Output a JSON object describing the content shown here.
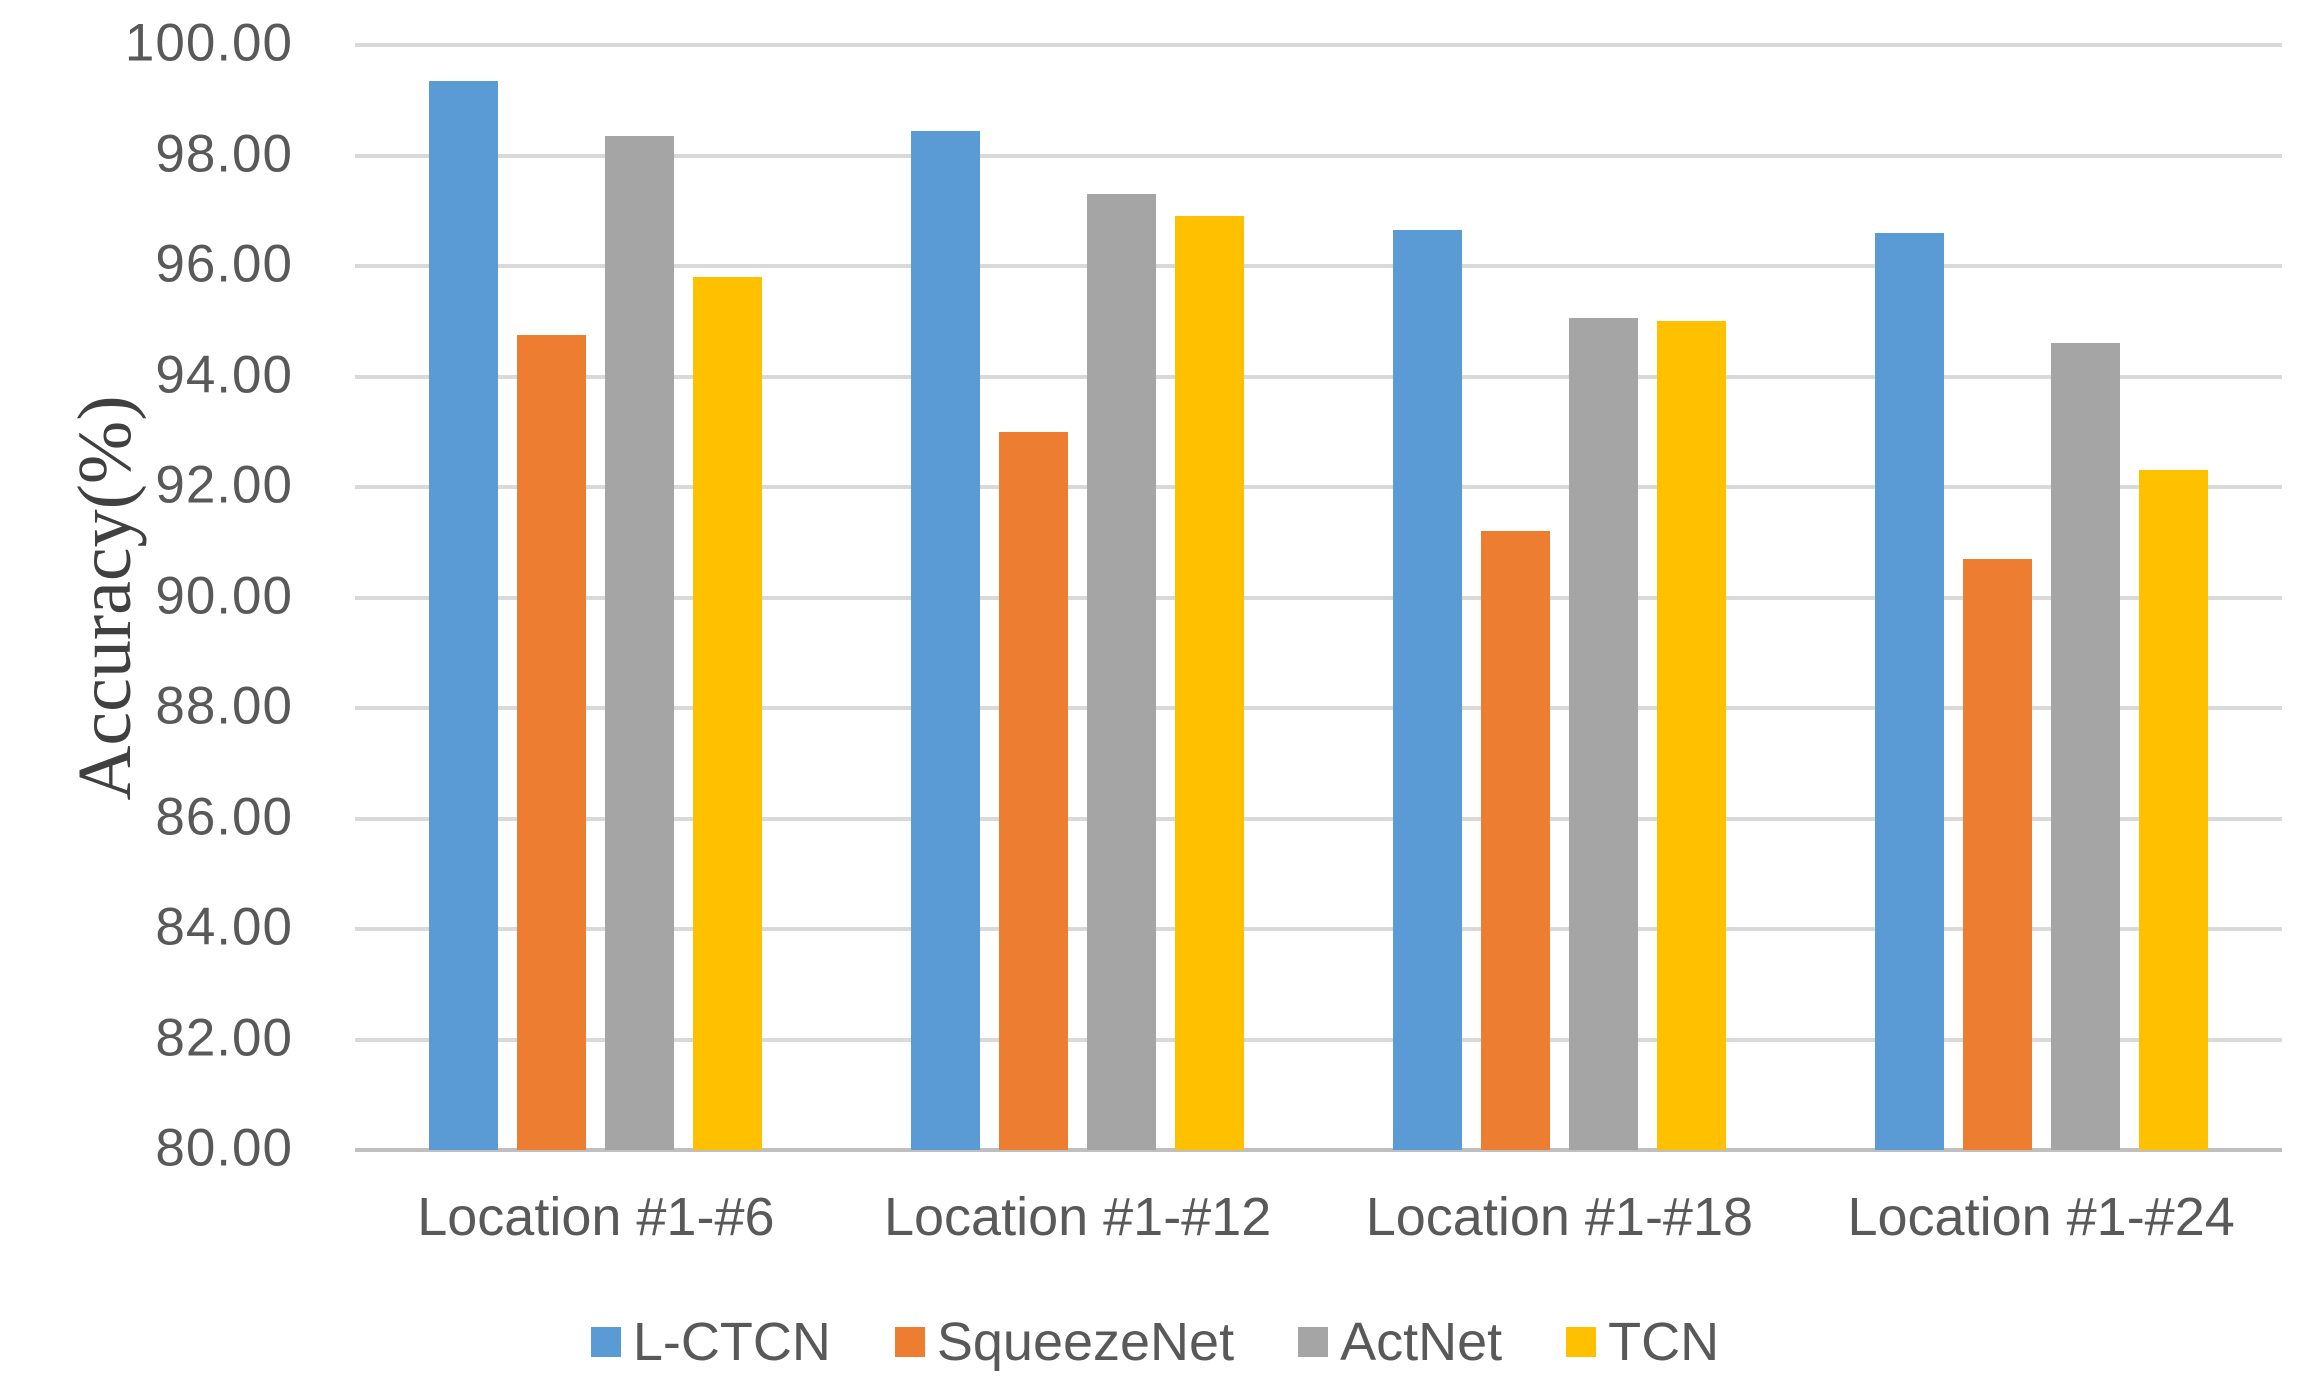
{
  "chart_data": {
    "type": "bar",
    "title": "",
    "xlabel": "",
    "ylabel": "Accuracy(%)",
    "ylim": [
      80,
      100
    ],
    "ytick_step": 2,
    "ytick_labels": [
      "80.00",
      "82.00",
      "84.00",
      "86.00",
      "88.00",
      "90.00",
      "92.00",
      "94.00",
      "96.00",
      "98.00",
      "100.00"
    ],
    "categories": [
      "Location #1-#6",
      "Location #1-#12",
      "Location #1-#18",
      "Location #1-#24"
    ],
    "series": [
      {
        "name": "L-CTCN",
        "color": "#5B9BD5",
        "values": [
          99.35,
          98.45,
          96.65,
          96.6
        ]
      },
      {
        "name": "SqueezeNet",
        "color": "#ED7D31",
        "values": [
          94.75,
          93.0,
          91.2,
          90.7
        ]
      },
      {
        "name": "ActNet",
        "color": "#A5A5A5",
        "values": [
          98.35,
          97.3,
          95.05,
          94.6
        ]
      },
      {
        "name": "TCN",
        "color": "#FFC000",
        "values": [
          95.8,
          96.9,
          95.0,
          92.3
        ]
      }
    ],
    "legend_position": "bottom",
    "grid": true,
    "gridline_color": "#D9D9D9",
    "axis_line_color": "#BFBFBF",
    "tick_text_color": "#595959",
    "axis_title_color": "#404040",
    "background_color": "#FFFFFF"
  }
}
